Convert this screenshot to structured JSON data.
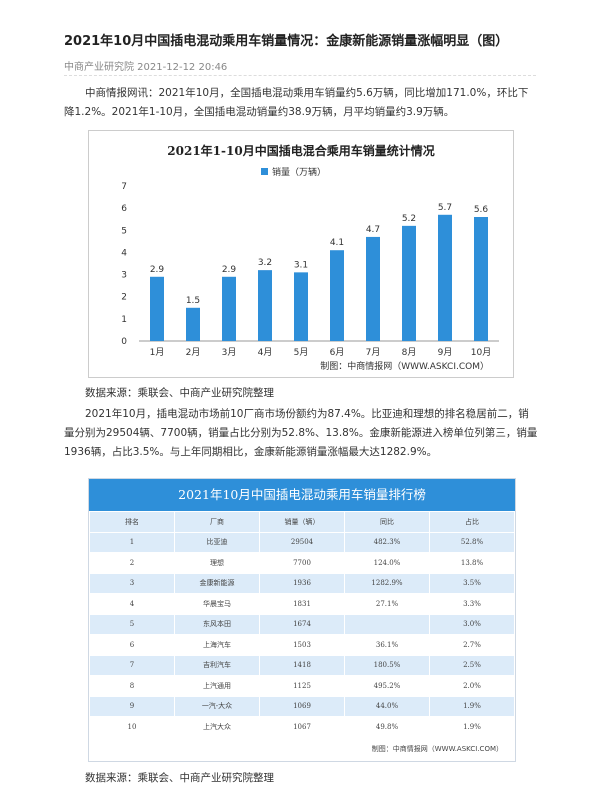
{
  "article": {
    "title": "2021年10月中国插电混动乘用车销量情况：金康新能源销量涨幅明显（图）",
    "source_date": "中商产业研究院 2021-12-12 20:46",
    "para1": "中商情报网讯：2021年10月，全国插电混动乘用车销量约5.6万辆，同比增加171.0%，环比下降1.2%。2021年1-10月，全国插电混动销量约38.9万辆，月平均销量约3.9万辆。",
    "source1": "数据来源：乘联会、中商产业研究院整理",
    "para2": "2021年10月，插电混动市场前10厂商市场份额约为87.4%。比亚迪和理想的排名稳居前二，销量分别为29504辆、7700辆，销量占比分别为52.8%、13.8%。金康新能源进入榜单位列第三，销量1936辆，占比3.5%。与上年同期相比，金康新能源销量涨幅最大达1282.9%。",
    "source2": "数据来源：乘联会、中商产业研究院整理"
  },
  "chart_data": {
    "type": "bar",
    "title": "2021年1-10月中国插电混合乘用车销量统计情况",
    "legend": "销量（万辆）",
    "categories": [
      "1月",
      "2月",
      "3月",
      "4月",
      "5月",
      "6月",
      "7月",
      "8月",
      "9月",
      "10月"
    ],
    "values": [
      2.9,
      1.5,
      2.9,
      3.2,
      3.1,
      4.1,
      4.7,
      5.2,
      5.7,
      5.6
    ],
    "yticks": [
      "0",
      "1",
      "2",
      "3",
      "4",
      "5",
      "6",
      "7"
    ],
    "ylim": [
      0,
      7
    ],
    "credit": "制图：中商情报网（WWW.ASKCI.COM）",
    "bar_color": "#2e8fd9"
  },
  "table": {
    "title": "2021年10月中国插电混动乘用车销量排行榜",
    "headers": [
      "排名",
      "厂商",
      "销量（辆）",
      "同比",
      "占比"
    ],
    "rows": [
      [
        "1",
        "比亚迪",
        "29504",
        "482.3%",
        "52.8%"
      ],
      [
        "2",
        "理想",
        "7700",
        "124.0%",
        "13.8%"
      ],
      [
        "3",
        "金康新能源",
        "1936",
        "1282.9%",
        "3.5%"
      ],
      [
        "4",
        "华晨宝马",
        "1831",
        "27.1%",
        "3.3%"
      ],
      [
        "5",
        "东风本田",
        "1674",
        "",
        "3.0%"
      ],
      [
        "6",
        "上海汽车",
        "1503",
        "36.1%",
        "2.7%"
      ],
      [
        "7",
        "吉利汽车",
        "1418",
        "180.5%",
        "2.5%"
      ],
      [
        "8",
        "上汽通用",
        "1125",
        "495.2%",
        "2.0%"
      ],
      [
        "9",
        "一汽-大众",
        "1069",
        "44.0%",
        "1.9%"
      ],
      [
        "10",
        "上汽大众",
        "1067",
        "49.8%",
        "1.9%"
      ]
    ],
    "credit": "制图：中商情报网（WWW.ASKCI.COM）"
  }
}
